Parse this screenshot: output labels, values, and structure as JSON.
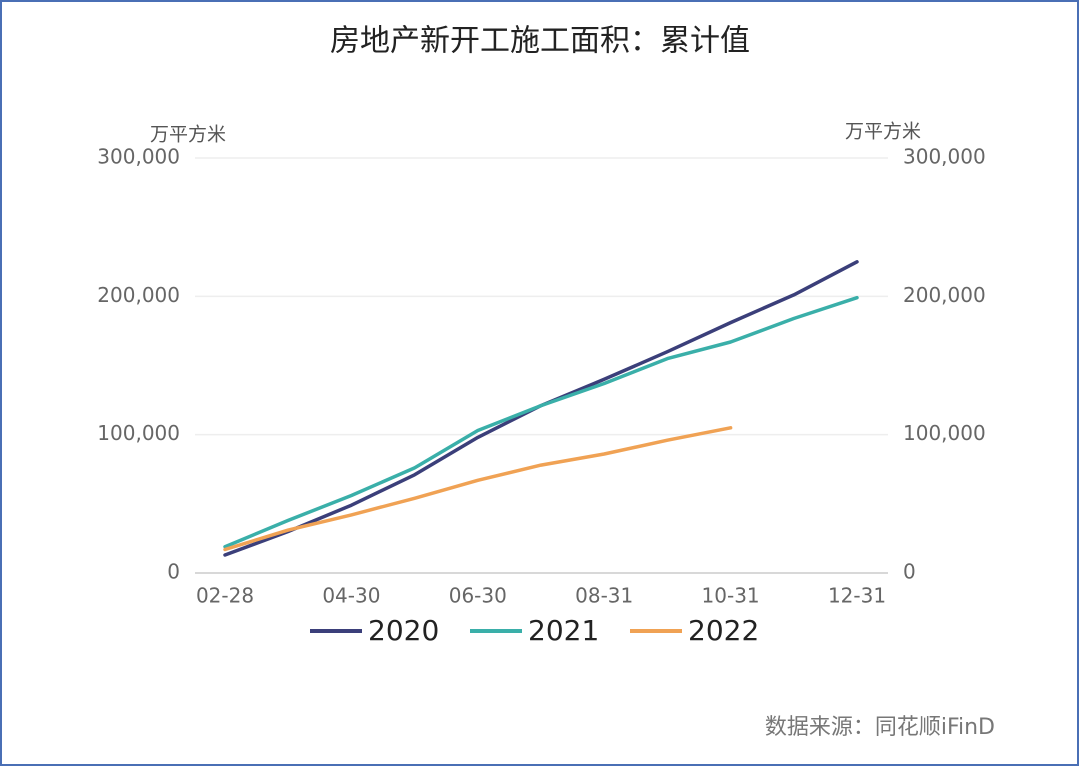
{
  "chart_data": {
    "type": "line",
    "title": "房地产新开工施工面积：累计值",
    "y_label": "万平方米",
    "y2_label": "万平方米",
    "source": "数据来源：同花顺iFinD",
    "categories": [
      "02-28",
      null,
      "04-30",
      null,
      "06-30",
      null,
      "08-31",
      null,
      "10-31",
      null,
      "12-31"
    ],
    "series": [
      {
        "name": "2020",
        "color": "#3b3f7a",
        "values": [
          13000,
          30000,
          49000,
          71000,
          98000,
          121000,
          140000,
          160000,
          181000,
          201000,
          225000
        ]
      },
      {
        "name": "2021",
        "color": "#3aafa9",
        "values": [
          19000,
          38000,
          56000,
          76000,
          103000,
          121000,
          137000,
          155000,
          167000,
          184000,
          199000
        ]
      },
      {
        "name": "2022",
        "color": "#f0a254",
        "values": [
          17000,
          31000,
          42000,
          54000,
          67000,
          78000,
          86000,
          96000,
          105000,
          null,
          null
        ]
      }
    ],
    "ylim": [
      0,
      300000
    ],
    "yticks": [
      0,
      {
        "value": 100000,
        "label": "100,000"
      },
      {
        "value": 200000,
        "label": "200,000"
      },
      {
        "value": 300000,
        "label": "300,000"
      }
    ],
    "y2lim": [
      0,
      300000
    ],
    "y2ticks": [
      0,
      {
        "value": 100000,
        "label": "100,000"
      },
      {
        "value": 200000,
        "label": "200,000"
      },
      {
        "value": 300000,
        "label": "300,000"
      }
    ],
    "grid": true
  }
}
